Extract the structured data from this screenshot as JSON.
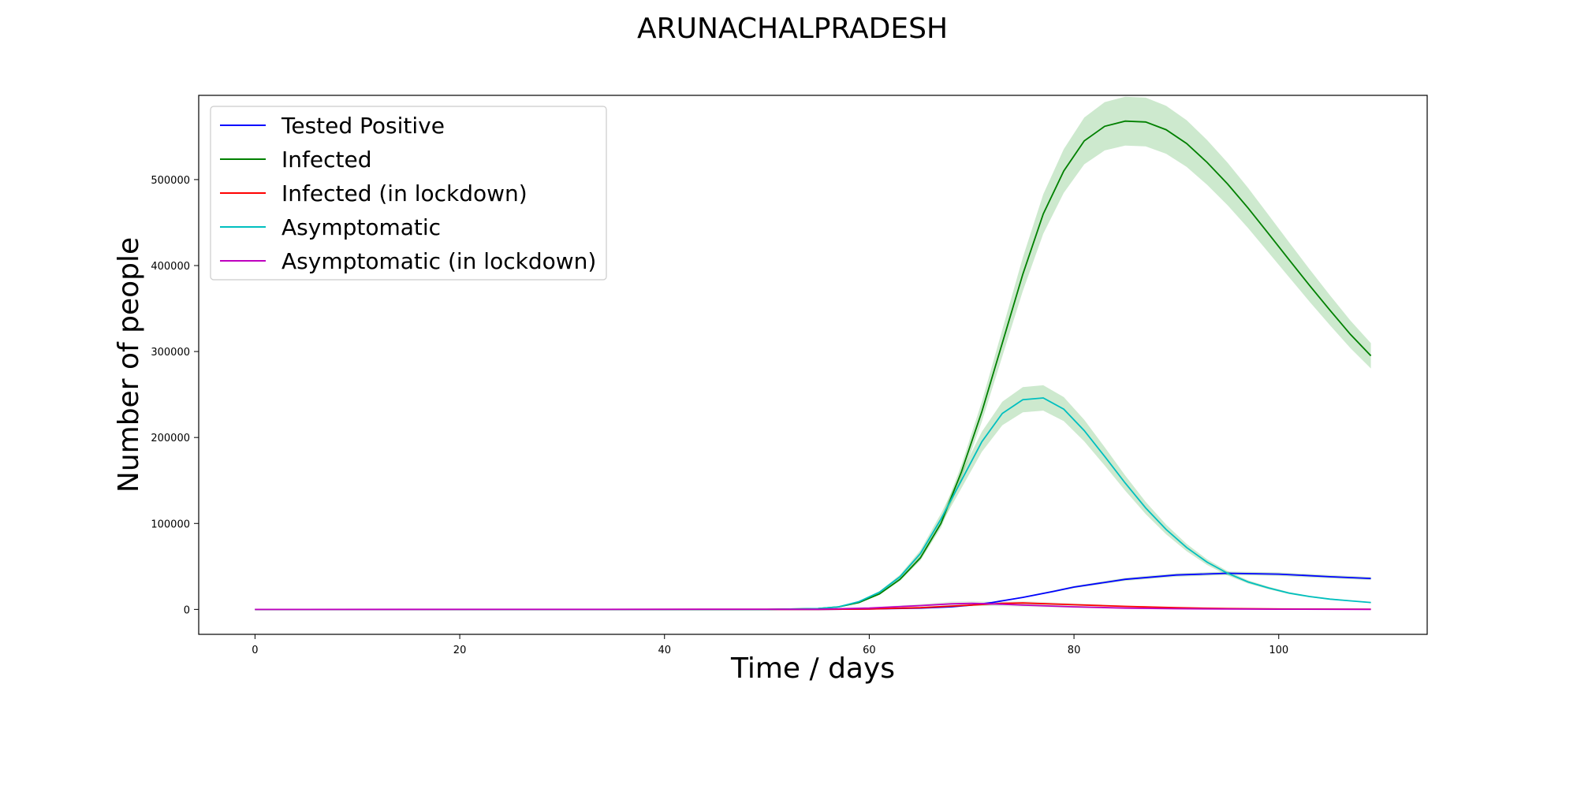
{
  "chart_data": {
    "type": "line",
    "title": "ARUNACHALPRADESH",
    "xlabel": "Time / days",
    "ylabel": "Number of people",
    "xlim": [
      -5.5,
      114.5
    ],
    "ylim": [
      -29000,
      598000
    ],
    "xticks": [
      0,
      20,
      40,
      60,
      80,
      100
    ],
    "yticks": [
      0,
      100000,
      200000,
      300000,
      400000,
      500000
    ],
    "grid": false,
    "legend_position": "upper-left",
    "series": [
      {
        "name": "Tested Positive",
        "color": "#0000ff",
        "band": 0.05,
        "x": [
          0,
          50,
          55,
          60,
          65,
          68,
          70,
          72,
          75,
          78,
          80,
          85,
          90,
          95,
          100,
          105,
          109
        ],
        "y": [
          0,
          0,
          100,
          500,
          1500,
          3000,
          5000,
          8000,
          14000,
          21000,
          26000,
          35000,
          40000,
          42000,
          41000,
          38000,
          36000
        ]
      },
      {
        "name": "Infected",
        "color": "#008000",
        "band": 0.05,
        "x": [
          0,
          50,
          55,
          57,
          59,
          61,
          63,
          65,
          67,
          69,
          71,
          73,
          75,
          77,
          79,
          81,
          83,
          85,
          87,
          89,
          91,
          93,
          95,
          97,
          99,
          101,
          103,
          105,
          107,
          109
        ],
        "y": [
          0,
          0,
          1000,
          3000,
          8000,
          18000,
          35000,
          60000,
          100000,
          160000,
          230000,
          310000,
          390000,
          460000,
          510000,
          545000,
          562000,
          568000,
          567000,
          558000,
          542000,
          520000,
          495000,
          467000,
          437000,
          407000,
          377000,
          348000,
          320000,
          295000
        ]
      },
      {
        "name": "Infected (in lockdown)",
        "color": "#ff0000",
        "band": 0.3,
        "x": [
          0,
          55,
          60,
          65,
          70,
          73,
          75,
          80,
          85,
          90,
          95,
          100,
          109
        ],
        "y": [
          0,
          100,
          500,
          2000,
          5000,
          7000,
          7500,
          5500,
          3500,
          2000,
          1000,
          500,
          200
        ]
      },
      {
        "name": "Asymptomatic",
        "color": "#00bfbf",
        "band": 0.06,
        "x": [
          0,
          50,
          55,
          57,
          59,
          61,
          63,
          65,
          67,
          69,
          71,
          73,
          75,
          77,
          79,
          81,
          83,
          85,
          87,
          89,
          91,
          93,
          95,
          97,
          99,
          101,
          103,
          105,
          107,
          109
        ],
        "y": [
          0,
          0,
          1000,
          3000,
          9000,
          20000,
          38000,
          65000,
          105000,
          150000,
          195000,
          228000,
          244000,
          246000,
          233000,
          208000,
          178000,
          147000,
          118000,
          93000,
          72000,
          55000,
          42000,
          32000,
          25000,
          19000,
          15000,
          12000,
          10000,
          8000
        ]
      },
      {
        "name": "Asymptomatic (in lockdown)",
        "color": "#bf00bf",
        "band": 0.4,
        "x": [
          0,
          55,
          60,
          65,
          68,
          70,
          72,
          75,
          80,
          85,
          90,
          95,
          100,
          109
        ],
        "y": [
          0,
          200,
          1500,
          4500,
          6500,
          7000,
          6500,
          5000,
          3000,
          1500,
          800,
          400,
          200,
          100
        ]
      }
    ]
  }
}
